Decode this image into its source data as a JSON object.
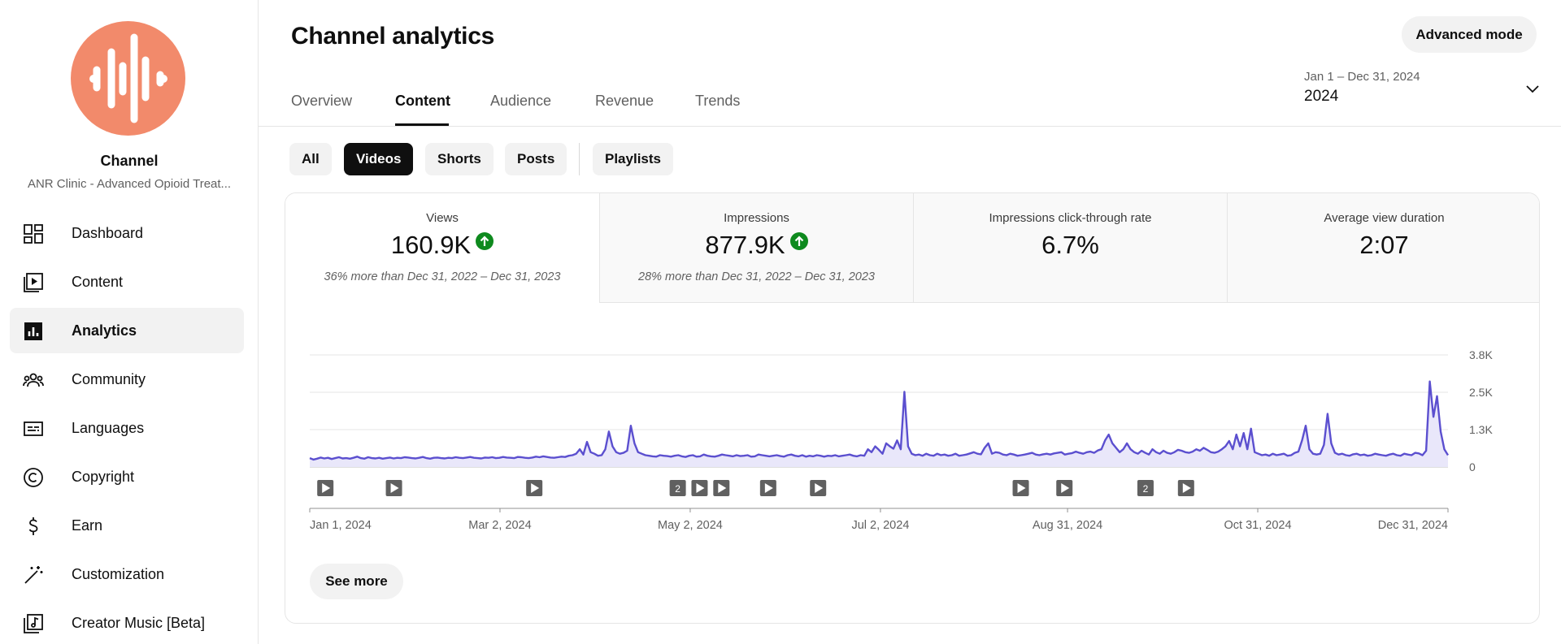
{
  "sidebar": {
    "channel_title": "Channel",
    "channel_name": "ANR Clinic - Advanced Opioid Treat...",
    "avatar_color": "#f28a6b",
    "items": [
      {
        "label": "Dashboard",
        "icon": "dashboard-icon"
      },
      {
        "label": "Content",
        "icon": "content-icon"
      },
      {
        "label": "Analytics",
        "icon": "analytics-icon",
        "active": true
      },
      {
        "label": "Community",
        "icon": "community-icon"
      },
      {
        "label": "Languages",
        "icon": "languages-icon"
      },
      {
        "label": "Copyright",
        "icon": "copyright-icon"
      },
      {
        "label": "Earn",
        "icon": "earn-icon"
      },
      {
        "label": "Customization",
        "icon": "customization-icon"
      },
      {
        "label": "Creator Music [Beta]",
        "icon": "creator-music-icon"
      }
    ]
  },
  "header": {
    "title": "Channel analytics",
    "advanced_mode": "Advanced mode",
    "tabs": [
      "Overview",
      "Content",
      "Audience",
      "Revenue",
      "Trends"
    ],
    "active_tab": "Content",
    "date_range_sub": "Jan 1 – Dec 31, 2024",
    "date_range_main": "2024"
  },
  "filters": {
    "chips": [
      "All",
      "Videos",
      "Shorts",
      "Posts"
    ],
    "playlists": "Playlists",
    "active": "Videos"
  },
  "metrics": [
    {
      "label": "Views",
      "value": "160.9K",
      "trend": "up",
      "compare": "36% more than Dec 31, 2022 – Dec 31, 2023"
    },
    {
      "label": "Impressions",
      "value": "877.9K",
      "trend": "up",
      "compare": "28% more than Dec 31, 2022 – Dec 31, 2023"
    },
    {
      "label": "Impressions click-through rate",
      "value": "6.7%"
    },
    {
      "label": "Average view duration",
      "value": "2:07"
    }
  ],
  "colors": {
    "line": "#5b4fcf",
    "fill": "#e9e7fa",
    "trend_up": "#0e8a1e",
    "active_chip": "#0f0f0f"
  },
  "chart_data": {
    "type": "line",
    "series": [
      {
        "values": [
          300,
          250,
          280,
          320,
          290,
          310,
          270,
          300,
          330,
          290,
          300,
          280,
          310,
          350,
          300,
          280,
          330,
          300,
          290,
          310,
          280,
          300,
          320,
          290,
          310,
          300,
          330,
          320,
          300,
          290,
          310,
          340,
          300,
          280,
          310,
          320,
          300,
          290,
          310,
          300,
          330,
          310,
          300,
          320,
          340,
          310,
          300,
          290,
          320,
          310,
          330,
          300,
          310,
          340,
          320,
          310,
          300,
          340,
          330,
          310,
          300,
          320,
          350,
          330,
          360,
          340,
          320,
          310,
          330,
          350,
          340,
          380,
          400,
          450,
          600,
          420,
          850,
          500,
          450,
          380,
          400,
          600,
          1200,
          700,
          500,
          450,
          480,
          550,
          1400,
          800,
          500,
          450,
          400,
          380,
          360,
          350,
          400,
          380,
          370,
          350,
          380,
          400,
          360,
          340,
          380,
          400,
          350,
          360,
          420,
          380,
          360,
          350,
          380,
          420,
          400,
          380,
          360,
          400,
          370,
          380,
          400,
          350,
          360,
          420,
          400,
          380,
          360,
          380,
          400,
          370,
          350,
          400,
          420,
          380,
          360,
          400,
          350,
          380,
          360,
          400,
          380,
          350,
          380,
          370,
          400,
          360,
          380,
          400,
          420,
          380,
          360,
          400,
          380,
          600,
          500,
          700,
          580,
          450,
          800,
          700,
          620,
          900,
          600,
          2550,
          700,
          450,
          400,
          420,
          380,
          450,
          400,
          380,
          450,
          400,
          420,
          380,
          400,
          450,
          380,
          400,
          420,
          460,
          500,
          450,
          430,
          650,
          800,
          450,
          500,
          480,
          420,
          400,
          450,
          420,
          380,
          400,
          420,
          450,
          480,
          420,
          400,
          430,
          450,
          420,
          460,
          480,
          500,
          420,
          450,
          470,
          520,
          480,
          450,
          500,
          520,
          480,
          560,
          600,
          900,
          1100,
          800,
          650,
          500,
          600,
          800,
          600,
          500,
          450,
          550,
          480,
          420,
          600,
          500,
          450,
          550,
          480,
          450,
          500,
          580,
          550,
          500,
          480,
          520,
          600,
          550,
          650,
          580,
          500,
          480,
          520,
          600,
          700,
          880,
          600,
          1100,
          700,
          1150,
          600,
          1300,
          500,
          450,
          400,
          420,
          380,
          450,
          400,
          420,
          450,
          380,
          400,
          480,
          520,
          900,
          1400,
          600,
          450,
          420,
          450,
          750,
          1800,
          800,
          480,
          420,
          450,
          400,
          380,
          430,
          450,
          400,
          420,
          380,
          400,
          450,
          420,
          400,
          380,
          420,
          450,
          400,
          380,
          450,
          420,
          400,
          480,
          460,
          400,
          550,
          2900,
          1700,
          2400,
          1200,
          600,
          400
        ]
      }
    ],
    "ylim": [
      0,
      3800
    ],
    "yticks": [
      "0",
      "1.3K",
      "2.5K",
      "3.8K"
    ],
    "xticks": [
      "Jan 1, 2024",
      "Mar 2, 2024",
      "May 2, 2024",
      "Jul 2, 2024",
      "Aug 31, 2024",
      "Oct 31, 2024",
      "Dec 31, 2024"
    ],
    "publish_markers": [
      {
        "date": "Jan 6, 2024"
      },
      {
        "date": "Jan 28, 2024"
      },
      {
        "date": "Mar 13, 2024"
      },
      {
        "date": "Apr 28, 2024",
        "count": "2"
      },
      {
        "date": "May 5, 2024"
      },
      {
        "date": "May 12, 2024"
      },
      {
        "date": "May 27, 2024"
      },
      {
        "date": "Jun 12, 2024"
      },
      {
        "date": "Aug 16, 2024"
      },
      {
        "date": "Aug 30, 2024"
      },
      {
        "date": "Sep 25, 2024",
        "count": "2"
      },
      {
        "date": "Oct 8, 2024"
      }
    ]
  },
  "see_more": "See more"
}
